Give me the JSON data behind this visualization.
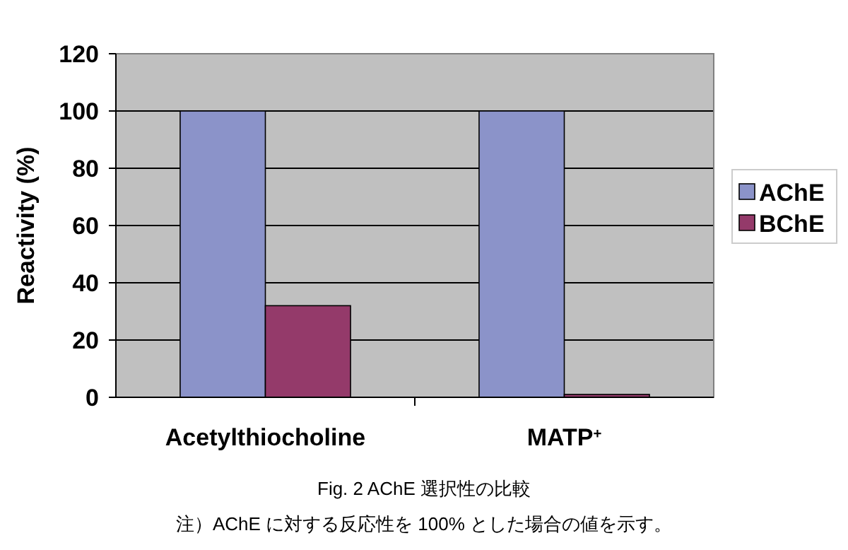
{
  "chart_data": {
    "type": "bar",
    "title": "Fig. 2  AChE 選択性の比較",
    "ylabel": "Reactivity (%)",
    "annotations": [
      "注）AChE に対する反応性を 100% とした場合の値を示す。"
    ],
    "categories": [
      "Acetylthiocholine",
      "MATP$^{+}$"
    ],
    "series": [
      {
        "name": "AChE",
        "color": "#8b93c9",
        "values": [
          100,
          100
        ]
      },
      {
        "name": "BChE",
        "color": "#943a6a",
        "values": [
          32,
          1
        ]
      }
    ],
    "ylim": [
      0,
      120
    ],
    "yticks": [
      0,
      20,
      40,
      60,
      80,
      100,
      120
    ],
    "grid": "y",
    "legend": "right"
  }
}
